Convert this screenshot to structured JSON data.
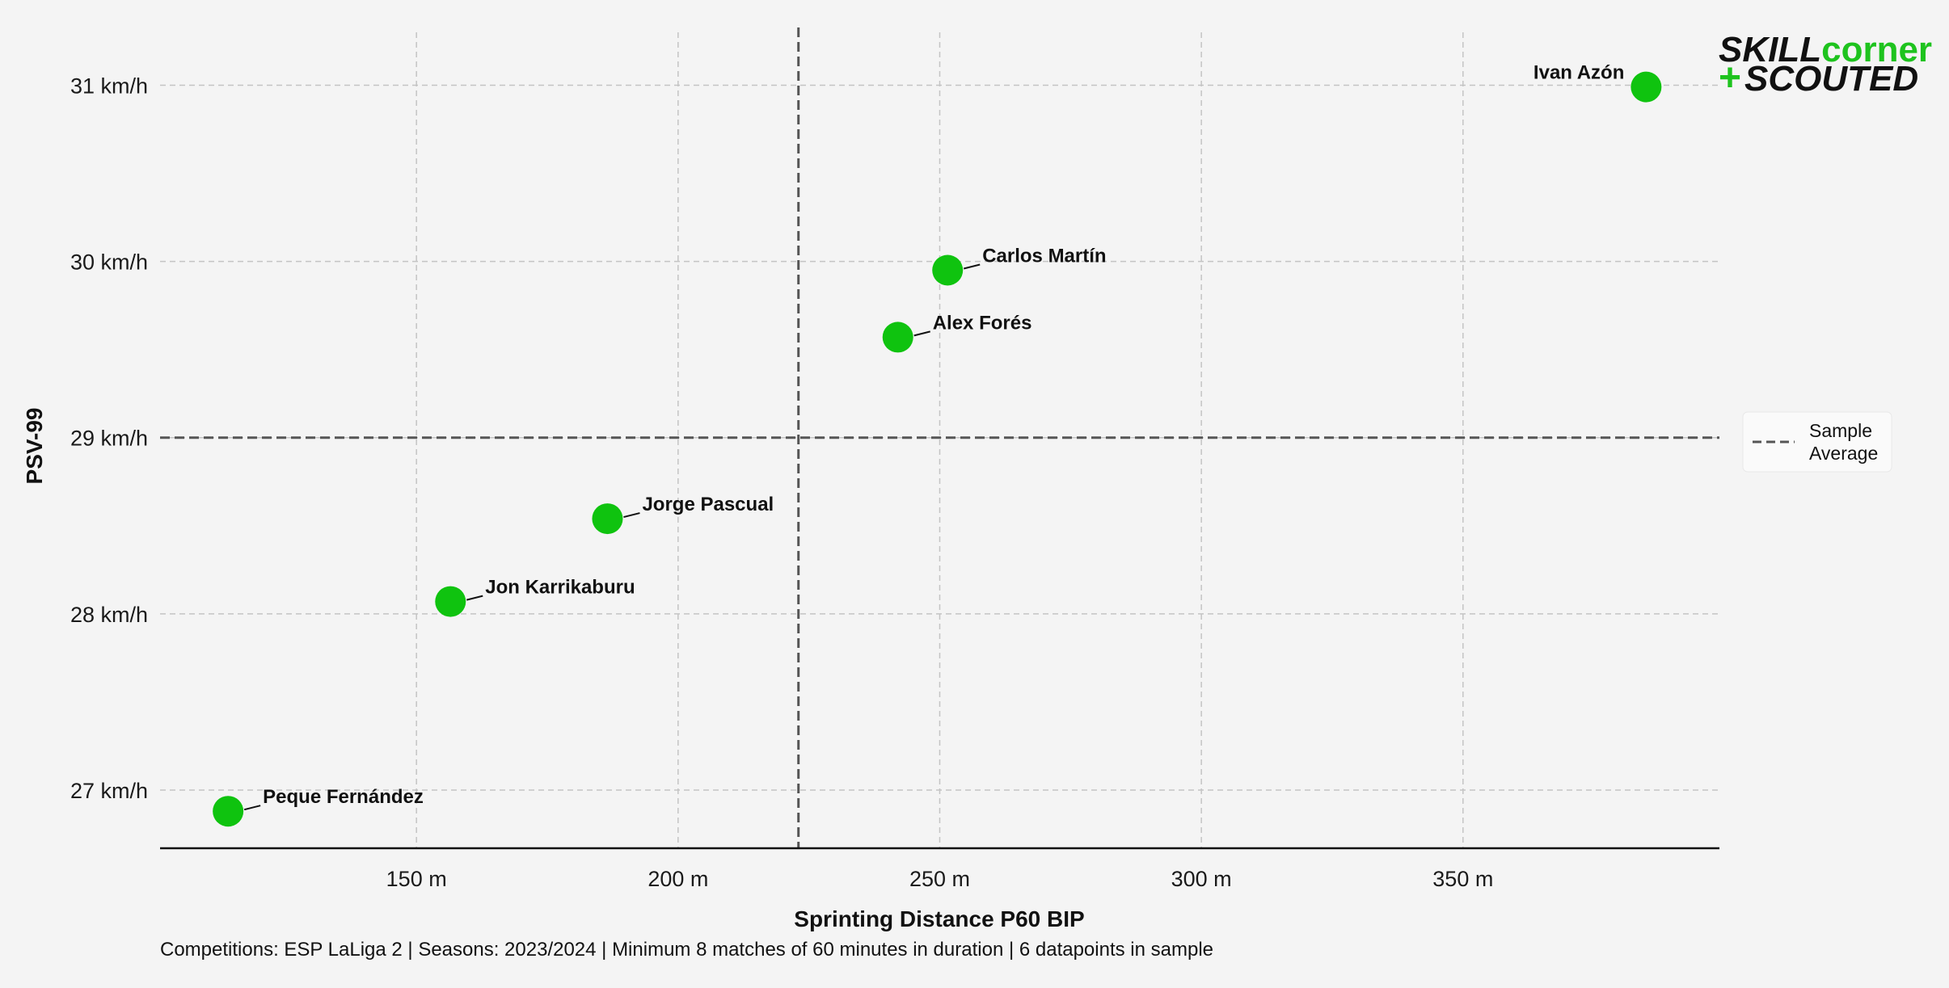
{
  "chart_data": {
    "type": "scatter",
    "xlabel": "Sprinting Distance P60 BIP",
    "ylabel": "PSV-99",
    "xlim": [
      101,
      399
    ],
    "ylim": [
      26.67,
      31.3
    ],
    "x_ticks": [
      150,
      200,
      250,
      300,
      350
    ],
    "x_tick_labels": [
      "150 m",
      "200 m",
      "250 m",
      "300 m",
      "350 m"
    ],
    "y_ticks": [
      27,
      28,
      29,
      30,
      31
    ],
    "y_tick_labels": [
      "27 km/h",
      "28 km/h",
      "29 km/h",
      "30 km/h",
      "31 km/h"
    ],
    "grid": true,
    "average_x": 223,
    "average_y": 29.0,
    "points": [
      {
        "label": "Ivan Azón",
        "x": 385,
        "y": 30.99
      },
      {
        "label": "Carlos Martín",
        "x": 251.5,
        "y": 29.95
      },
      {
        "label": "Alex Forés",
        "x": 242,
        "y": 29.57
      },
      {
        "label": "Jorge Pascual",
        "x": 186.5,
        "y": 28.54
      },
      {
        "label": "Jon Karrikaburu",
        "x": 156.5,
        "y": 28.07
      },
      {
        "label": "Peque Fernández",
        "x": 114,
        "y": 26.88
      }
    ],
    "point_color": "#0fc30f",
    "legend": {
      "label_line1": "Sample",
      "label_line2": "Average",
      "placement": "right"
    },
    "footnote": "Competitions: ESP LaLiga 2 | Seasons: 2023/2024 | Minimum 8 matches of 60 minutes in duration | 6 datapoints in sample"
  },
  "logo": {
    "word1": "SKILL",
    "word2": "corner",
    "plus": "+",
    "word3": "SCOUTED"
  },
  "colors": {
    "background": "#f4f4f4",
    "accent": "#1ec31e",
    "average_line": "#555555",
    "grid": "#c4c4c4"
  }
}
